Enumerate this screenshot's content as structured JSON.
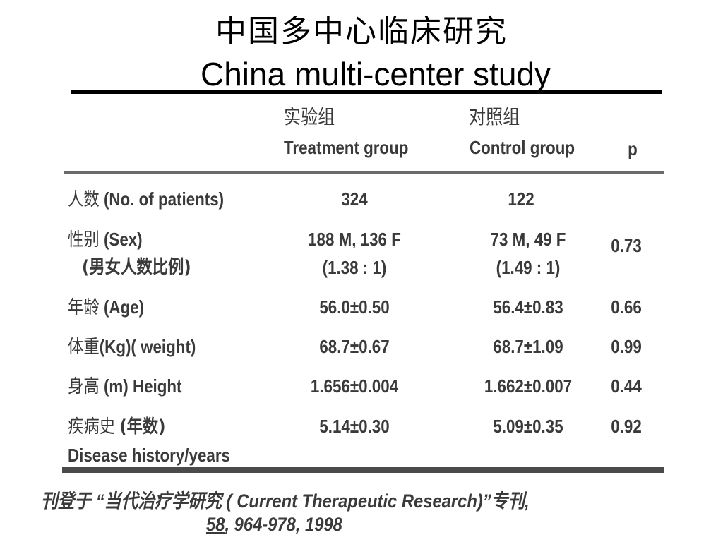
{
  "title": {
    "cn": "中国多中心临床研究",
    "en": "China multi-center study"
  },
  "table": {
    "headers": {
      "treatment_cn": "实验组",
      "treatment_en": "Treatment group",
      "control_cn": "对照组",
      "control_en": "Control group",
      "p": "p"
    },
    "rows": [
      {
        "label_cn": "人数",
        "label_en": "(No. of patients)",
        "treatment": "324",
        "control": "122",
        "p": ""
      },
      {
        "label_cn": "性别",
        "label_en": "(Sex)",
        "label2": "(男女人数比例)",
        "treatment": "188 M, 136 F",
        "treatment2": "(1.38 : 1)",
        "control": "73 M, 49 F",
        "control2": "(1.49 : 1)",
        "p": "0.73"
      },
      {
        "label_cn": "年龄",
        "label_en": "(Age)",
        "treatment": "56.0±0.50",
        "control": "56.4±0.83",
        "p": "0.66"
      },
      {
        "label_cn": "体重",
        "label_en": "(Kg)( weight)",
        "treatment": "68.7±0.67",
        "control": "68.7±1.09",
        "p": "0.99"
      },
      {
        "label_cn": "身高",
        "label_en": "(m) Height",
        "treatment": "1.656±0.004",
        "control": "1.662±0.007",
        "p": "0.44"
      },
      {
        "label_cn": "疾病史",
        "label_en": "(年数)",
        "label2": "Disease history/years",
        "treatment": "5.14±0.30",
        "control": "5.09±0.35",
        "p": "0.92"
      }
    ]
  },
  "footer": {
    "line1": "刊登于 “当代治疗学研究 ( Current Therapeutic Research)”专刊,",
    "volume": "58",
    "pages": ", 964-978, 1998"
  }
}
